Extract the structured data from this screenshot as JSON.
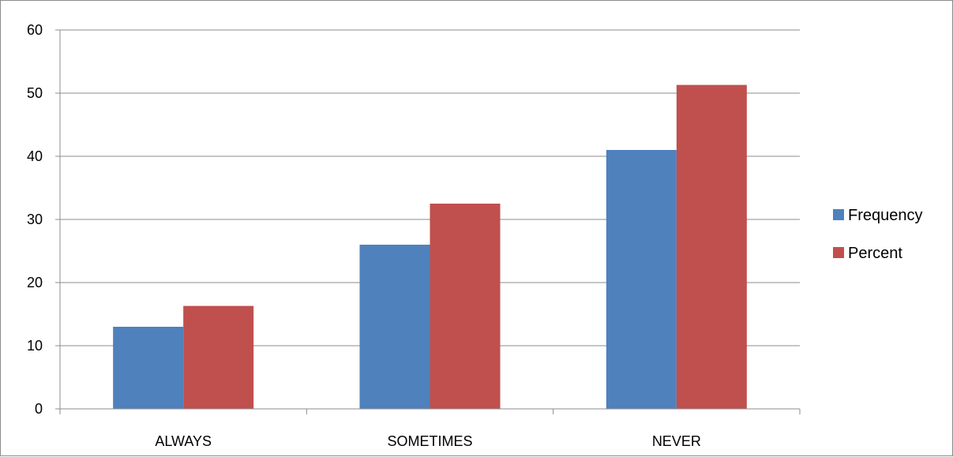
{
  "chart_data": {
    "type": "bar",
    "title": "",
    "xlabel": "",
    "ylabel": "",
    "categories": [
      "ALWAYS",
      "SOMETIMES",
      "NEVER"
    ],
    "series": [
      {
        "name": "Frequency",
        "values": [
          13,
          26,
          41
        ],
        "color": "#4f81bd"
      },
      {
        "name": "Percent",
        "values": [
          16.3,
          32.5,
          51.3
        ],
        "color": "#c0504d"
      }
    ],
    "ylim": [
      0,
      60
    ],
    "yticks": [
      "0",
      "10",
      "20",
      "30",
      "40",
      "50",
      "60"
    ],
    "grid": true,
    "legend": "right"
  }
}
